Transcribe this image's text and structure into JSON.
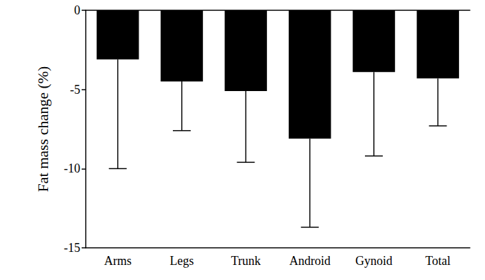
{
  "chart_data": {
    "type": "bar",
    "y_label": "Fat mass change (%)",
    "categories": [
      "Arms",
      "Legs",
      "Trunk",
      "Android",
      "Gynoid",
      "Total"
    ],
    "values": [
      -3.1,
      -4.5,
      -5.1,
      -8.1,
      -3.9,
      -4.3
    ],
    "errors": [
      6.9,
      3.1,
      4.5,
      5.6,
      5.3,
      3.0
    ],
    "color": "#000000",
    "ylim": [
      -15,
      0
    ],
    "yticks": [
      -15,
      -10,
      -5,
      0
    ],
    "grid": false
  }
}
